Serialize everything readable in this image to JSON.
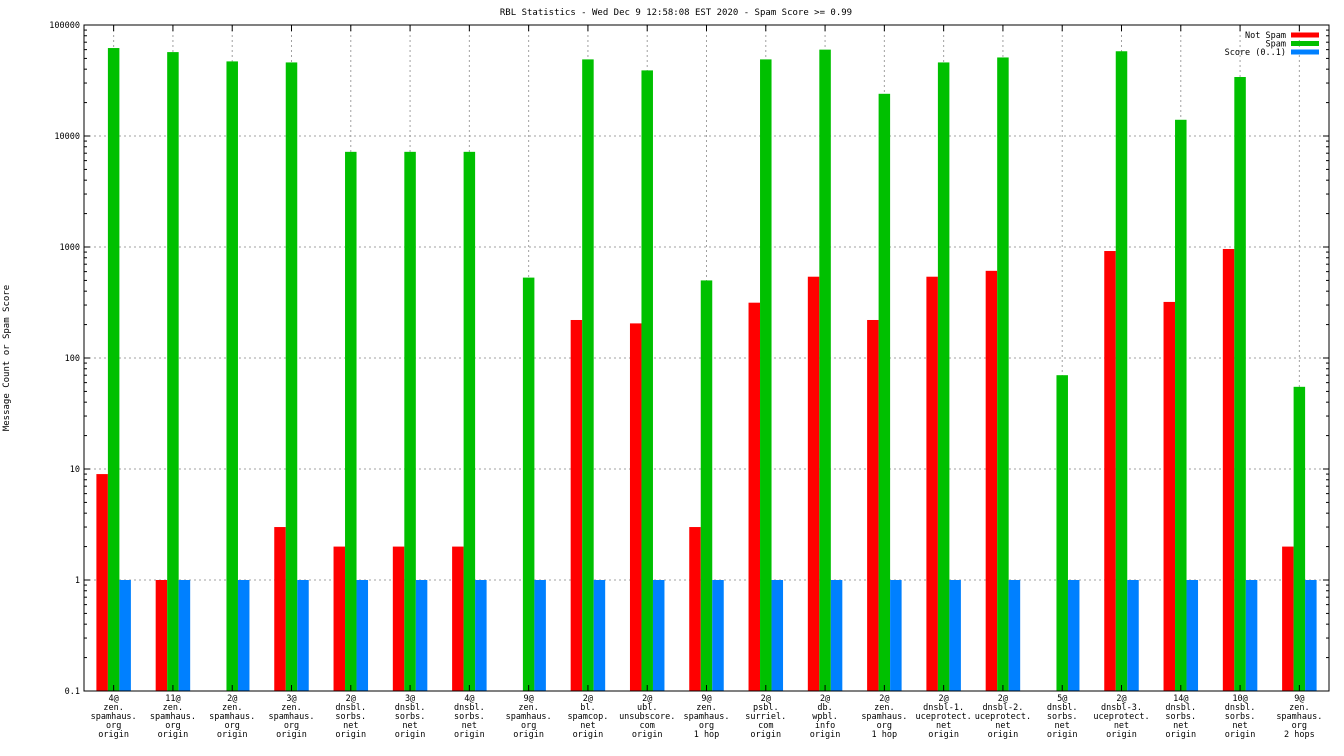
{
  "chart_data": {
    "type": "bar",
    "title": "RBL Statistics - Wed Dec  9 12:58:08 EST 2020 - Spam Score >= 0.99",
    "ylabel": "Message Count or Spam Score",
    "xlabel": "",
    "yscale": "log",
    "ylim": [
      0.1,
      100000
    ],
    "yticks": [
      "0.1",
      "1",
      "10",
      "100",
      "1000",
      "10000",
      "100000"
    ],
    "grid": true,
    "legend_position": "top-right",
    "categories": [
      [
        "4@",
        "zen.",
        "spamhaus.",
        "org",
        "origin"
      ],
      [
        "11@",
        "zen.",
        "spamhaus.",
        "org",
        "origin"
      ],
      [
        "2@",
        "zen.",
        "spamhaus.",
        "org",
        "origin"
      ],
      [
        "3@",
        "zen.",
        "spamhaus.",
        "org",
        "origin"
      ],
      [
        "2@",
        "dnsbl.",
        "sorbs.",
        "net",
        "origin"
      ],
      [
        "3@",
        "dnsbl.",
        "sorbs.",
        "net",
        "origin"
      ],
      [
        "4@",
        "dnsbl.",
        "sorbs.",
        "net",
        "origin"
      ],
      [
        "9@",
        "zen.",
        "spamhaus.",
        "org",
        "origin"
      ],
      [
        "2@",
        "bl.",
        "spamcop.",
        "net",
        "origin"
      ],
      [
        "2@",
        "ubl.",
        "unsubscore.",
        "com",
        "origin"
      ],
      [
        "9@",
        "zen.",
        "spamhaus.",
        "org",
        "1 hop"
      ],
      [
        "2@",
        "psbl.",
        "surriel.",
        "com",
        "origin"
      ],
      [
        "2@",
        "db.",
        "wpbl.",
        "info",
        "origin"
      ],
      [
        "2@",
        "zen.",
        "spamhaus.",
        "org",
        "1 hop"
      ],
      [
        "2@",
        "dnsbl-1.",
        "uceprotect.",
        "net",
        "origin"
      ],
      [
        "2@",
        "dnsbl-2.",
        "uceprotect.",
        "net",
        "origin"
      ],
      [
        "5@",
        "dnsbl.",
        "sorbs.",
        "net",
        "origin"
      ],
      [
        "2@",
        "dnsbl-3.",
        "uceprotect.",
        "net",
        "origin"
      ],
      [
        "14@",
        "dnsbl.",
        "sorbs.",
        "net",
        "origin"
      ],
      [
        "10@",
        "dnsbl.",
        "sorbs.",
        "net",
        "origin"
      ],
      [
        "9@",
        "zen.",
        "spamhaus.",
        "org",
        "2 hops"
      ]
    ],
    "series": [
      {
        "name": "Not Spam",
        "color": "#ff0000",
        "values": [
          9,
          1,
          null,
          3,
          2,
          2,
          2,
          null,
          220,
          205,
          3,
          315,
          540,
          220,
          540,
          610,
          null,
          920,
          320,
          960,
          2
        ]
      },
      {
        "name": "Spam",
        "color": "#00c000",
        "values": [
          62000,
          57000,
          47000,
          46000,
          7200,
          7200,
          7200,
          530,
          49000,
          39000,
          500,
          49000,
          60000,
          24000,
          46000,
          51000,
          70,
          58000,
          14000,
          34000,
          55
        ]
      },
      {
        "name": "Score (0..1)",
        "color": "#0080ff",
        "values": [
          1,
          1,
          1,
          1,
          1,
          1,
          1,
          1,
          1,
          1,
          1,
          1,
          1,
          1,
          1,
          1,
          1,
          1,
          1,
          1,
          1
        ]
      }
    ]
  }
}
